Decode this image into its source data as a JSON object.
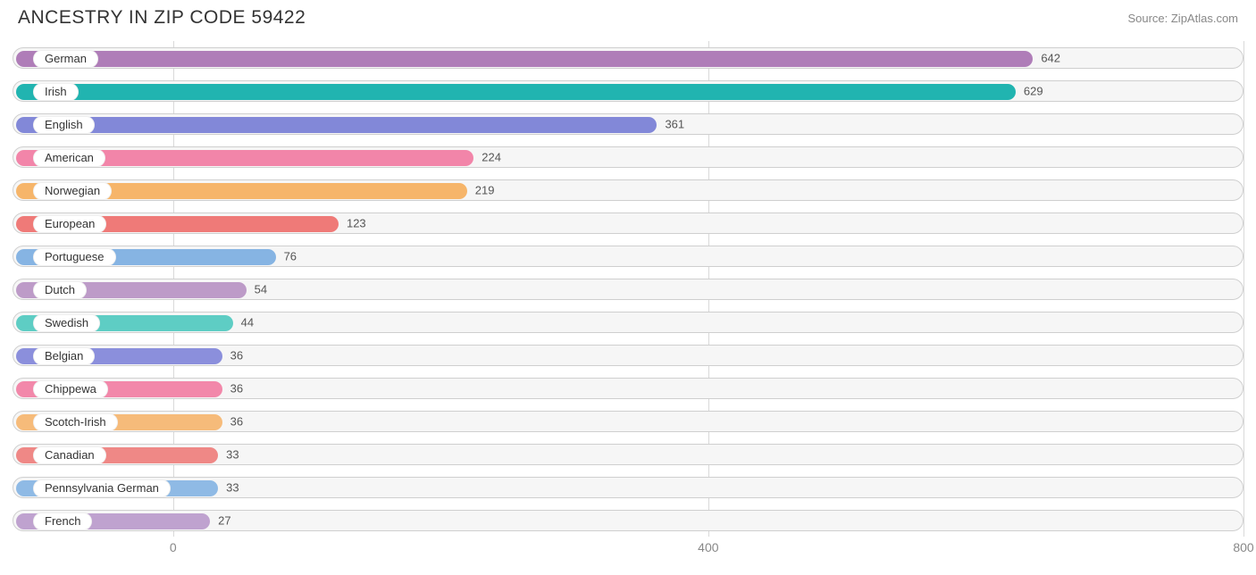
{
  "header": {
    "title": "ANCESTRY IN ZIP CODE 59422",
    "source": "Source: ZipAtlas.com"
  },
  "chart": {
    "type": "bar",
    "orientation": "horizontal",
    "x_min": -120,
    "x_max": 800,
    "x_ticks": [
      0,
      400,
      800
    ],
    "track_background": "#f6f6f6",
    "track_border": "#cfcfcf",
    "grid_color": "#d9d9d9",
    "label_pill_bg": "#ffffff",
    "title_font_size": 21,
    "axis_font_size": 14,
    "label_font_size": 13,
    "bars": [
      {
        "label": "German",
        "value": 642,
        "color": "#af7db8"
      },
      {
        "label": "Irish",
        "value": 629,
        "color": "#21b4b0"
      },
      {
        "label": "English",
        "value": 361,
        "color": "#8288d8"
      },
      {
        "label": "American",
        "value": 224,
        "color": "#f285a9"
      },
      {
        "label": "Norwegian",
        "value": 219,
        "color": "#f6b56a"
      },
      {
        "label": "European",
        "value": 123,
        "color": "#ef7a78"
      },
      {
        "label": "Portuguese",
        "value": 76,
        "color": "#86b4e3"
      },
      {
        "label": "Dutch",
        "value": 54,
        "color": "#bd9bc8"
      },
      {
        "label": "Swedish",
        "value": 44,
        "color": "#5ecdc4"
      },
      {
        "label": "Belgian",
        "value": 36,
        "color": "#8b8fdc"
      },
      {
        "label": "Chippewa",
        "value": 36,
        "color": "#f288aa"
      },
      {
        "label": "Scotch-Irish",
        "value": 36,
        "color": "#f6bb7a"
      },
      {
        "label": "Canadian",
        "value": 33,
        "color": "#ef8886"
      },
      {
        "label": "Pennsylvania German",
        "value": 33,
        "color": "#8fbae5"
      },
      {
        "label": "French",
        "value": 27,
        "color": "#bfa2cf"
      }
    ]
  }
}
